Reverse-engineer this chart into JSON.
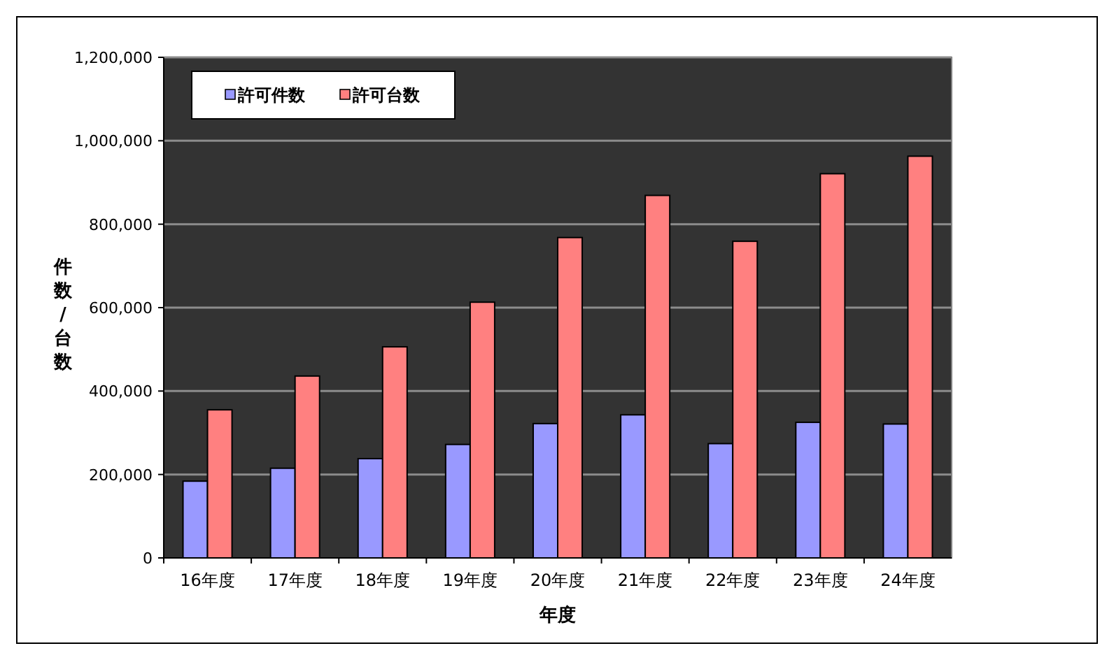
{
  "chart_data": {
    "type": "bar",
    "xlabel": "年度",
    "ylabel": "件数/台数",
    "categories": [
      "16年度",
      "17年度",
      "18年度",
      "19年度",
      "20年度",
      "21年度",
      "22年度",
      "23年度",
      "24年度"
    ],
    "series": [
      {
        "name": "許可件数",
        "color": "#9999ff",
        "values": [
          184000,
          215000,
          238000,
          272000,
          322000,
          343000,
          274000,
          325000,
          321000
        ]
      },
      {
        "name": "許可台数",
        "color": "#ff8080",
        "values": [
          355000,
          436000,
          506000,
          613000,
          768000,
          869000,
          759000,
          921000,
          963000
        ]
      }
    ],
    "ylim": [
      0,
      1200000
    ],
    "yticks": [
      0,
      {
        "value": 200000,
        "label": "200,000"
      },
      {
        "value": 400000,
        "label": "400,000"
      },
      {
        "value": 600000,
        "label": "600,000"
      },
      {
        "value": 800000,
        "label": "800,000"
      },
      {
        "value": 1000000,
        "label": "1,000,000"
      },
      {
        "value": 1200000,
        "label": "1,200,000"
      }
    ],
    "grid": "y",
    "legend": "top left"
  }
}
